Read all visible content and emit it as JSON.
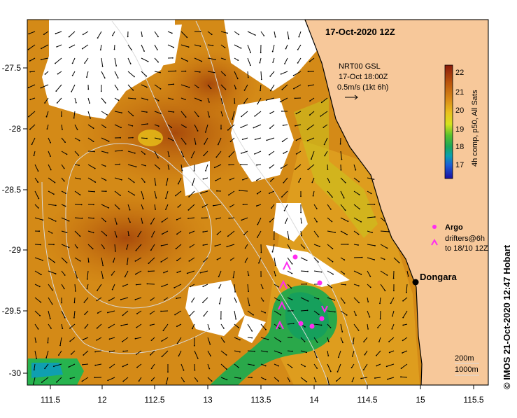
{
  "map": {
    "title": "17-Oct-2020 12Z",
    "wind_source": "NRT00 GSL",
    "wind_time": "17-Oct 18:00Z",
    "scale_label": "0.5m/s (1kt 6h)",
    "colorbar_label": "4h comp, p50, All Sats",
    "colorbar_ticks": [
      "22",
      "21",
      "20",
      "19",
      "18",
      "17"
    ],
    "x_ticks": [
      "111.5",
      "12",
      "112.5",
      "13",
      "113.5",
      "14",
      "114.5",
      "15",
      "115.5"
    ],
    "y_ticks": [
      "-27.5",
      "-28",
      "-28.5",
      "-29",
      "-29.5",
      "-30"
    ],
    "place_name": "Dongara",
    "legend": {
      "argo": "Argo",
      "drifters_line1": "drifters@6h",
      "drifters_line2": "to 18/10 12Z"
    },
    "isobath_1": "200m",
    "isobath_2": "1000m",
    "credit": "© IMOS 21-Oct-2020 12:47 Hobart",
    "colors": {
      "land": "#f7c89a",
      "warm": "#c8730e",
      "mid": "#e09a1c",
      "cool": "#2eab45",
      "argo": "#ff2cf0"
    }
  }
}
